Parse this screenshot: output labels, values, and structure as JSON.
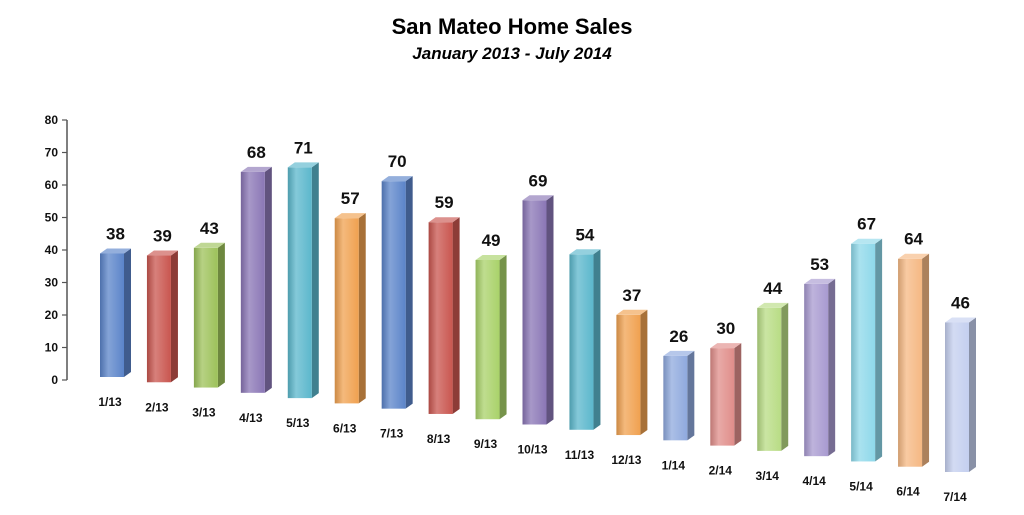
{
  "chart_data": {
    "type": "bar",
    "title": "San Mateo Home Sales",
    "subtitle": "January 2013 - July 2014",
    "xlabel": "",
    "ylabel": "",
    "ylim": [
      0,
      80
    ],
    "yticks": [
      0,
      10,
      20,
      30,
      40,
      50,
      60,
      70,
      80
    ],
    "grid": false,
    "categories": [
      "1/13",
      "2/13",
      "3/13",
      "4/13",
      "5/13",
      "6/13",
      "7/13",
      "8/13",
      "9/13",
      "10/13",
      "11/13",
      "12/13",
      "1/14",
      "2/14",
      "3/14",
      "4/14",
      "5/14",
      "6/14",
      "7/14"
    ],
    "values": [
      38,
      39,
      43,
      68,
      71,
      57,
      70,
      59,
      49,
      69,
      54,
      37,
      26,
      30,
      44,
      53,
      67,
      64,
      46
    ],
    "colors": [
      "#5b84c9",
      "#c9564f",
      "#9dc25a",
      "#8a76b5",
      "#5bb7cc",
      "#f0a150",
      "#5b84c9",
      "#c9564f",
      "#a9d26a",
      "#8a76b5",
      "#5bb7cc",
      "#f0a150",
      "#8fa9de",
      "#e08d8a",
      "#b8dc84",
      "#a89ad0",
      "#8ed8ea",
      "#f5b883",
      "#c4cfef"
    ]
  }
}
